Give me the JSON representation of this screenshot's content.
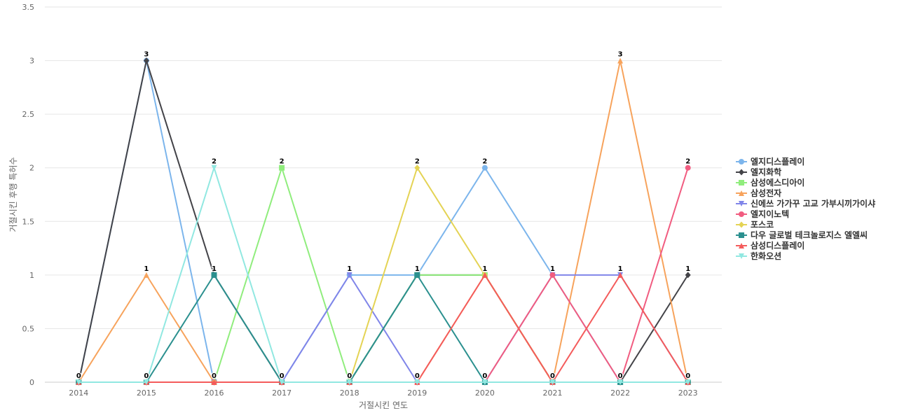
{
  "chart_data": {
    "type": "line",
    "title": "",
    "xlabel": "거절시킨 연도",
    "ylabel": "거절시킨 후행 특허수",
    "x": [
      "2014",
      "2015",
      "2016",
      "2017",
      "2018",
      "2019",
      "2020",
      "2021",
      "2022",
      "2023"
    ],
    "ylim": [
      0,
      3.5
    ],
    "yticks": [
      "0",
      "0.5",
      "1",
      "1.5",
      "2",
      "2.5",
      "3",
      "3.5"
    ],
    "grid": true,
    "legend_position": "right",
    "series": [
      {
        "name": "엘지디스플레이",
        "color": "#7cb5ec",
        "marker": "circle",
        "values": [
          0,
          3,
          0,
          0,
          1,
          1,
          2,
          1,
          0,
          0
        ]
      },
      {
        "name": "엘지화학",
        "color": "#434348",
        "marker": "diamond",
        "values": [
          0,
          3,
          1,
          0,
          0,
          1,
          1,
          0,
          0,
          1
        ]
      },
      {
        "name": "삼성에스디아이",
        "color": "#90ed7d",
        "marker": "square",
        "values": [
          0,
          0,
          0,
          2,
          0,
          1,
          1,
          0,
          0,
          0
        ]
      },
      {
        "name": "삼성전자",
        "color": "#f7a35c",
        "marker": "triangle",
        "values": [
          0,
          1,
          0,
          0,
          0,
          0,
          1,
          0,
          3,
          0
        ]
      },
      {
        "name": "신에쓰 가가꾸 고교 가부시끼가이샤",
        "color": "#8085e9",
        "marker": "triangle-down",
        "values": [
          0,
          0,
          0,
          0,
          1,
          0,
          0,
          1,
          1,
          0
        ]
      },
      {
        "name": "엘지이노텍",
        "color": "#f15c80",
        "marker": "circle",
        "values": [
          0,
          0,
          0,
          0,
          0,
          0,
          0,
          1,
          0,
          2
        ]
      },
      {
        "name": "포스코",
        "color": "#e4d354",
        "marker": "diamond",
        "values": [
          0,
          0,
          0,
          0,
          0,
          2,
          1,
          0,
          0,
          0
        ]
      },
      {
        "name": "다우 글로벌 테크놀로지스 엘엘씨",
        "color": "#2b908f",
        "marker": "square",
        "values": [
          0,
          0,
          1,
          0,
          0,
          1,
          0,
          0,
          0,
          0
        ]
      },
      {
        "name": "삼성디스플레이",
        "color": "#f45b5b",
        "marker": "triangle",
        "values": [
          0,
          0,
          0,
          0,
          0,
          0,
          1,
          0,
          1,
          0
        ]
      },
      {
        "name": "한화오션",
        "color": "#91e8e1",
        "marker": "triangle-down",
        "values": [
          0,
          0,
          2,
          0,
          0,
          0,
          0,
          0,
          0,
          0
        ]
      }
    ],
    "data_labels": [
      0,
      3,
      2,
      2,
      1,
      2,
      2,
      1,
      3,
      2
    ]
  }
}
